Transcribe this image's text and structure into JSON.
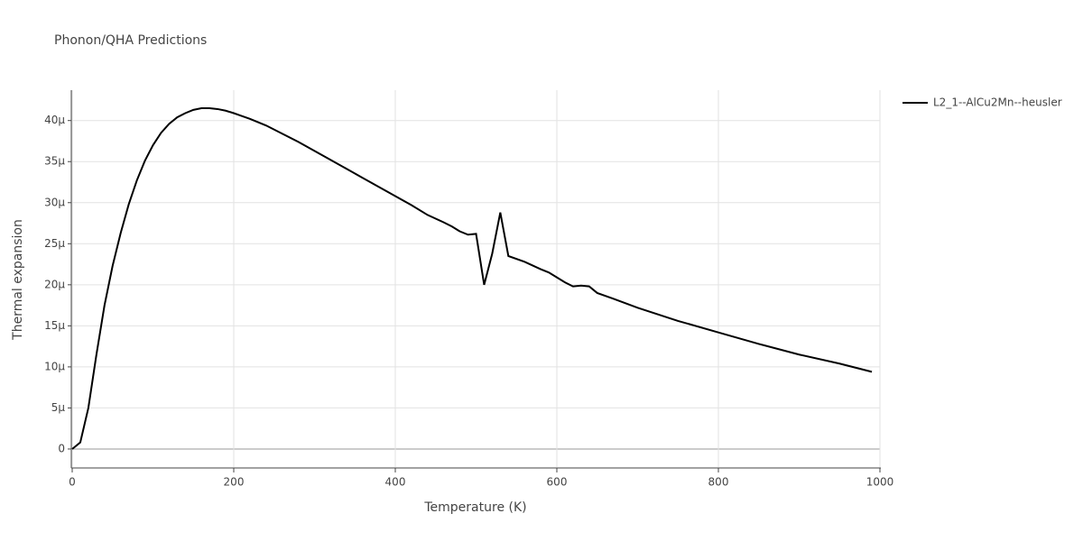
{
  "chart_data": {
    "type": "line",
    "title": "Phonon/QHA Predictions",
    "x_label": "Temperature (K)",
    "y_label": "Thermal expansion",
    "xlim": [
      0,
      1000
    ],
    "xticks": [
      0,
      200,
      400,
      600,
      800,
      1000
    ],
    "ylim": [
      -2.2e-06,
      4.37e-05
    ],
    "yticks": [
      0,
      {
        "value": 5e-06,
        "label": "5µ"
      },
      {
        "value": 1e-05,
        "label": "10µ"
      },
      {
        "value": 1.5e-05,
        "label": "15µ"
      },
      {
        "value": 2e-05,
        "label": "20µ"
      },
      {
        "value": 2.5e-05,
        "label": "25µ"
      },
      {
        "value": 3e-05,
        "label": "30µ"
      },
      {
        "value": 3.5e-05,
        "label": "35µ"
      },
      {
        "value": 4e-05,
        "label": "40µ"
      }
    ],
    "grid": true,
    "legend": "right",
    "series": [
      {
        "name": "L2_1--AlCu2Mn--heusler",
        "color": "#000000",
        "x": [
          0,
          10,
          20,
          30,
          40,
          50,
          60,
          70,
          80,
          90,
          100,
          110,
          120,
          130,
          140,
          150,
          160,
          170,
          180,
          190,
          200,
          220,
          240,
          260,
          280,
          300,
          320,
          340,
          360,
          380,
          400,
          420,
          440,
          460,
          470,
          480,
          490,
          500,
          510,
          520,
          530,
          540,
          560,
          580,
          590,
          600,
          610,
          620,
          630,
          640,
          650,
          670,
          700,
          750,
          800,
          850,
          900,
          950,
          990
        ],
        "values": [
          0,
          8e-07,
          5e-06,
          1.15e-05,
          1.75e-05,
          2.23e-05,
          2.63e-05,
          2.98e-05,
          3.27e-05,
          3.51e-05,
          3.7e-05,
          3.85e-05,
          3.96e-05,
          4.04e-05,
          4.09e-05,
          4.13e-05,
          4.15e-05,
          4.15e-05,
          4.14e-05,
          4.12e-05,
          4.09e-05,
          4.02e-05,
          3.94e-05,
          3.84e-05,
          3.74e-05,
          3.63e-05,
          3.52e-05,
          3.41e-05,
          3.3e-05,
          3.19e-05,
          3.08e-05,
          2.97e-05,
          2.85e-05,
          2.76e-05,
          2.71e-05,
          2.65e-05,
          2.61e-05,
          2.62e-05,
          2e-05,
          2.38e-05,
          2.88e-05,
          2.35e-05,
          2.28e-05,
          2.19e-05,
          2.15e-05,
          2.09e-05,
          2.03e-05,
          1.98e-05,
          1.99e-05,
          1.98e-05,
          1.9e-05,
          1.83e-05,
          1.72e-05,
          1.56e-05,
          1.42e-05,
          1.28e-05,
          1.15e-05,
          1.04e-05,
          9.4e-06
        ]
      }
    ]
  }
}
